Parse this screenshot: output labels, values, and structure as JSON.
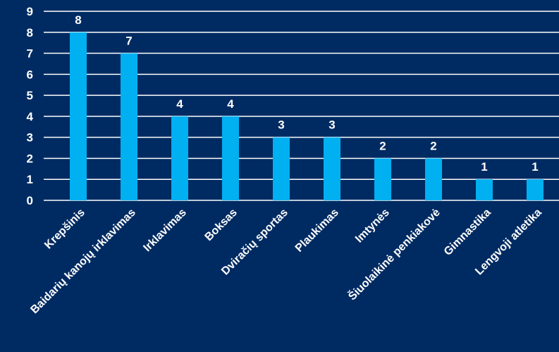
{
  "chart_data": {
    "type": "bar",
    "categories": [
      "Krepšinis",
      "Baidarių kanojų irklavimas",
      "Irklavimas",
      "Boksas",
      "Dviračių sportas",
      "Plaukimas",
      "Imtynės",
      "Šiuolaikinė penkiakovė",
      "Gimnastika",
      "Lengvoji atletika"
    ],
    "values": [
      8,
      7,
      4,
      4,
      3,
      3,
      2,
      2,
      1,
      1
    ],
    "yticks": [
      "0",
      "1",
      "2",
      "3",
      "4",
      "5",
      "6",
      "7",
      "8",
      "9"
    ],
    "ylim": [
      0,
      9
    ],
    "grid": true,
    "title": "",
    "xlabel": "",
    "ylabel": "",
    "colors": {
      "background": "#002b62",
      "bar": "#00b0f0",
      "grid": "#ffffff",
      "text": "#ffffff"
    }
  }
}
